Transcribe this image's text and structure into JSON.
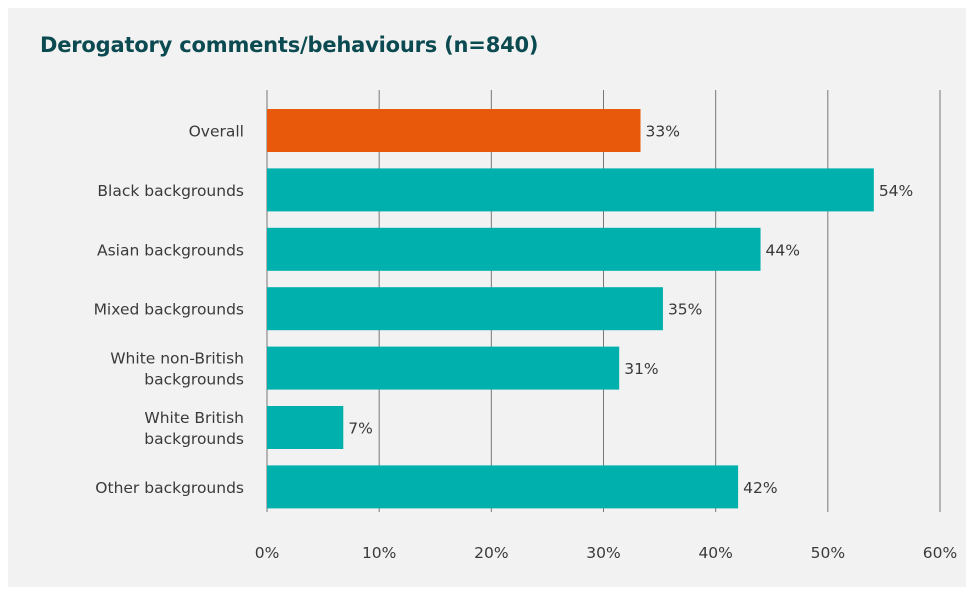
{
  "chart_data": {
    "type": "bar",
    "orientation": "horizontal",
    "title": "Derogatory comments/behaviours (n=840)",
    "xlabel": "",
    "ylabel": "",
    "categories": [
      [
        "Overall"
      ],
      [
        "Black backgrounds"
      ],
      [
        "Asian backgrounds"
      ],
      [
        "Mixed backgrounds"
      ],
      [
        "White non-British",
        "backgrounds"
      ],
      [
        "White British",
        "backgrounds"
      ],
      [
        "Other backgrounds"
      ]
    ],
    "values": [
      33.3,
      54.1,
      44.0,
      35.3,
      31.4,
      6.8,
      42.0
    ],
    "value_labels": [
      "33%",
      "54%",
      "44%",
      "35%",
      "31%",
      "7%",
      "42%"
    ],
    "xlim": [
      0,
      60
    ],
    "ticks": [
      0,
      10,
      20,
      30,
      40,
      50,
      60
    ],
    "tick_labels": [
      "0%",
      "10%",
      "20%",
      "30%",
      "40%",
      "50%",
      "60%"
    ],
    "grid": "vertical",
    "legend": "none",
    "colors": {
      "highlight": "#e8590c",
      "bars": "#00b0ac",
      "gridline": "#777777",
      "title": "#0b4a50",
      "background": "#f2f2f2"
    },
    "highlight_index": 0
  }
}
